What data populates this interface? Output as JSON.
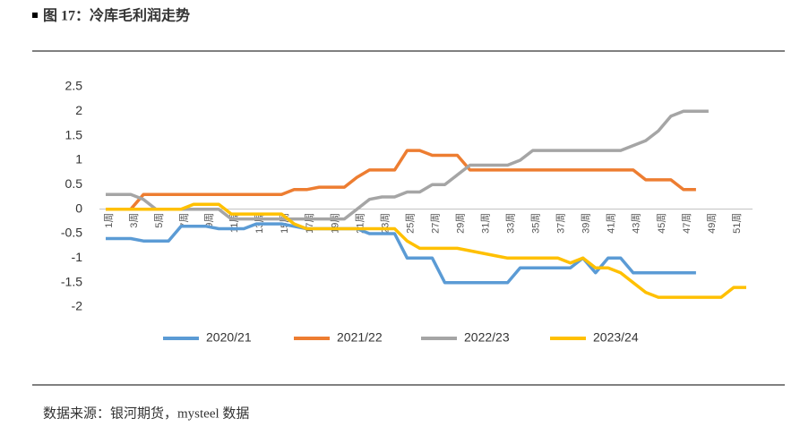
{
  "chart_data": {
    "type": "line",
    "title": "图 17：冷库毛利润走势",
    "source": "数据来源：银河期货，mysteel 数据",
    "categories": [
      "1周",
      null,
      "3周",
      null,
      "5周",
      null,
      "7周",
      null,
      "9周",
      null,
      "11周",
      null,
      "13周",
      null,
      "15周",
      null,
      "17周",
      null,
      "19周",
      null,
      "21周",
      null,
      "23周",
      null,
      "25周",
      null,
      "27周",
      null,
      "29周",
      null,
      "31周",
      null,
      "33周",
      null,
      "35周",
      null,
      "37周",
      null,
      "39周",
      null,
      "41周",
      null,
      "43周",
      null,
      "45周",
      null,
      "47周",
      null,
      "49周",
      null,
      "51周",
      null
    ],
    "ylim": [
      -2,
      2.5
    ],
    "yticks": [
      -2,
      -1.5,
      -1,
      -0.5,
      0,
      0.5,
      1,
      1.5,
      2,
      2.5
    ],
    "grid": false,
    "legend": "bottom",
    "series": [
      {
        "name": "2020/21",
        "color": "#5b9bd5",
        "values": [
          -0.6,
          -0.6,
          -0.6,
          -0.65,
          -0.65,
          -0.65,
          -0.35,
          -0.35,
          -0.35,
          -0.4,
          -0.4,
          -0.4,
          -0.3,
          -0.3,
          -0.3,
          -0.35,
          -0.4,
          -0.4,
          -0.4,
          -0.4,
          -0.4,
          -0.5,
          -0.5,
          -0.5,
          -1,
          -1,
          -1,
          -1.5,
          -1.5,
          -1.5,
          -1.5,
          -1.5,
          -1.5,
          -1.2,
          -1.2,
          -1.2,
          -1.2,
          -1.2,
          -1,
          -1.3,
          -1,
          -1,
          -1.3,
          -1.3,
          -1.3,
          -1.3,
          -1.3,
          -1.3,
          null,
          null,
          null,
          null
        ]
      },
      {
        "name": "2021/22",
        "color": "#ed7d31",
        "values": [
          0,
          0,
          0,
          0.3,
          0.3,
          0.3,
          0.3,
          0.3,
          0.3,
          0.3,
          0.3,
          0.3,
          0.3,
          0.3,
          0.3,
          0.4,
          0.4,
          0.45,
          0.45,
          0.45,
          0.65,
          0.8,
          0.8,
          0.8,
          1.2,
          1.2,
          1.1,
          1.1,
          1.1,
          0.8,
          0.8,
          0.8,
          0.8,
          0.8,
          0.8,
          0.8,
          0.8,
          0.8,
          0.8,
          0.8,
          0.8,
          0.8,
          0.8,
          0.6,
          0.6,
          0.6,
          0.4,
          0.4,
          null,
          null,
          null,
          null
        ]
      },
      {
        "name": "2022/23",
        "color": "#a5a5a5",
        "values": [
          0.3,
          0.3,
          0.3,
          0.2,
          0,
          0,
          0,
          0,
          0,
          0,
          -0.2,
          -0.2,
          -0.2,
          -0.2,
          -0.2,
          -0.2,
          -0.2,
          -0.2,
          -0.2,
          -0.2,
          0,
          0.2,
          0.25,
          0.25,
          0.35,
          0.35,
          0.5,
          0.5,
          0.7,
          0.9,
          0.9,
          0.9,
          0.9,
          1,
          1.2,
          1.2,
          1.2,
          1.2,
          1.2,
          1.2,
          1.2,
          1.2,
          1.3,
          1.4,
          1.6,
          1.9,
          2,
          2,
          2,
          null,
          null,
          null
        ]
      },
      {
        "name": "2023/24",
        "color": "#ffc000",
        "values": [
          0,
          0,
          0,
          0,
          0,
          0,
          0,
          0.1,
          0.1,
          0.1,
          -0.1,
          -0.1,
          -0.1,
          -0.1,
          -0.1,
          -0.3,
          -0.4,
          -0.4,
          -0.4,
          -0.4,
          -0.4,
          -0.4,
          -0.4,
          -0.4,
          -0.65,
          -0.8,
          -0.8,
          -0.8,
          -0.8,
          -0.85,
          -0.9,
          -0.95,
          -1,
          -1,
          -1,
          -1,
          -1,
          -1.1,
          -1,
          -1.2,
          -1.2,
          -1.3,
          -1.5,
          -1.7,
          -1.8,
          -1.8,
          -1.8,
          -1.8,
          -1.8,
          -1.8,
          -1.6,
          -1.6
        ]
      }
    ]
  }
}
